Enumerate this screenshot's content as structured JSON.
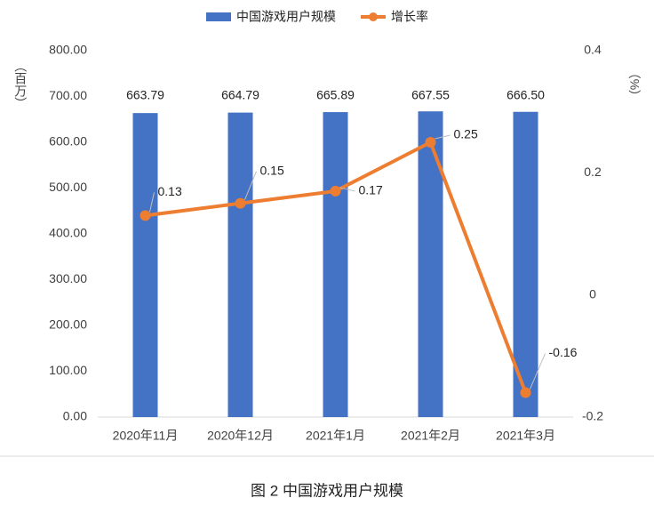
{
  "chart_data": {
    "type": "combo",
    "caption": "图 2 中国游戏用户规模",
    "y_label": "（百万）",
    "y2_label": "（%）",
    "categories": [
      "2020年11月",
      "2020年12月",
      "2021年1月",
      "2021年2月",
      "2021年3月"
    ],
    "series": [
      {
        "name": "中国游戏用户规模",
        "type": "bar",
        "color": "#4472c4",
        "values": [
          663.79,
          664.79,
          665.89,
          667.55,
          666.5
        ],
        "value_labels": [
          "663.79",
          "664.79",
          "665.89",
          "667.55",
          "666.50"
        ]
      },
      {
        "name": "增长率",
        "type": "line",
        "axis": "y2",
        "color": "#ed7d31",
        "values": [
          0.13,
          0.15,
          0.17,
          0.25,
          -0.16
        ]
      }
    ],
    "ylim": [
      0,
      800
    ],
    "yticks": [
      {
        "value": 0,
        "label": "0.00"
      },
      {
        "value": 100,
        "label": "100.00"
      },
      {
        "value": 200,
        "label": "200.00"
      },
      {
        "value": 300,
        "label": "300.00"
      },
      {
        "value": 400,
        "label": "400.00"
      },
      {
        "value": 500,
        "label": "500.00"
      },
      {
        "value": 600,
        "label": "600.00"
      },
      {
        "value": 700,
        "label": "700.00"
      },
      {
        "value": 800,
        "label": "800.00"
      }
    ],
    "y2lim": [
      -0.2,
      0.4
    ],
    "y2ticks": [
      -0.2,
      0,
      0.2,
      0.4
    ]
  }
}
